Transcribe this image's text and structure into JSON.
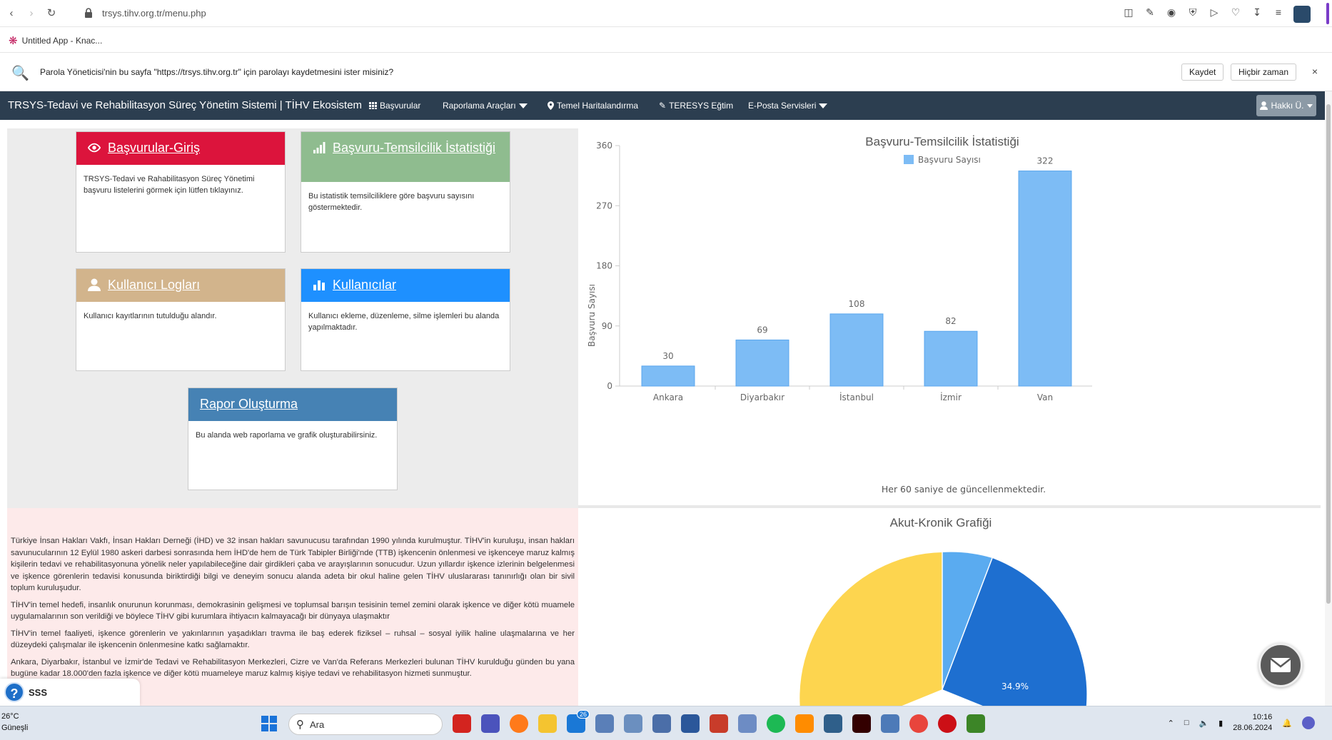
{
  "browser": {
    "url": "trsys.tihv.org.tr/menu.php",
    "bookmark": "Untitled App - Knac..."
  },
  "password_bar": {
    "message": "Parola Yöneticisi'nin bu sayfa \"https://trsys.tihv.org.tr\" için parolayı kaydetmesini ister misiniz?",
    "save_label": "Kaydet",
    "never_label": "Hiçbir zaman",
    "close_label": "×"
  },
  "navbar": {
    "brand": "TRSYS-Tedavi ve Rehabilitasyon Süreç Yönetim Sistemi | TİHV Ekosistem",
    "links": [
      "Başvurular",
      "Raporlama Araçları",
      "Temel Haritalandırma",
      "TERESYS Eğtim",
      "E-Posta Servisleri"
    ],
    "user": "Hakkı Ü."
  },
  "cards": [
    {
      "title": "Başvurular-Giriş",
      "body": "TRSYS-Tedavi ve Rahabilitasyon Süreç Yönetimi başvuru listelerini görmek için lütfen tıklayınız.",
      "color": "#dc143c"
    },
    {
      "title": "Başvuru-Temsilcilik İstatistiği",
      "body": "Bu istatistik temsilciliklere göre başvuru sayısını göstermektedir.",
      "color": "#8fbc8f"
    },
    {
      "title": "Kullanıcı Logları",
      "body": "Kullanıcı kayıtlarının tutulduğu alandır.",
      "color": "#d2b48c"
    },
    {
      "title": "Kullanıcılar",
      "body": "Kullanıcı ekleme, düzenleme, silme işlemleri bu alanda yapılmaktadır.",
      "color": "#1e90ff"
    },
    {
      "title": "Rapor Oluşturma",
      "body": "Bu alanda web raporlama ve grafik oluşturabilirsiniz.",
      "color": "#4682b4"
    }
  ],
  "about": {
    "paragraphs": [
      "Türkiye İnsan Hakları Vakfı, İnsan Hakları Derneği (İHD) ve 32 insan hakları savunucusu tarafından 1990 yılında kurulmuştur. TİHV'in kuruluşu, insan hakları savunucularının 12 Eylül 1980 askeri darbesi sonrasında hem İHD'de hem de Türk Tabipler Birliği'nde (TTB) işkencenin önlenmesi ve işkenceye maruz kalmış kişilerin tedavi ve rehabilitasyonuna yönelik neler yapılabileceğine dair girdikleri çaba ve arayışlarının sonucudur. Uzun yıllardır işkence izlerinin belgelenmesi ve işkence görenlerin tedavisi konusunda biriktirdiği bilgi ve deneyim sonucu alanda adeta bir okul haline gelen TİHV uluslararası tanınırlığı olan bir sivil toplum kuruluşudur.",
      "TİHV'in temel hedefi, insanlık onurunun korunması, demokrasinin gelişmesi ve toplumsal barışın tesisinin temel zemini olarak işkence ve diğer kötü muamele uygulamalarının son verildiği ve böylece TİHV gibi kurumlara ihtiyacın kalmayacağı bir dünyaya ulaşmaktır",
      "TİHV'in temel faaliyeti, işkence görenlerin ve yakınlarının yaşadıkları travma ile baş ederek fiziksel – ruhsal – sosyal iyilik haline ulaşmalarına ve her düzeydeki çalışmalar ile işkencenin önlenmesine katkı sağlamaktır.",
      "Ankara, Diyarbakır, İstanbul ve İzmir'de Tedavi ve Rehabilitasyon Merkezleri, Cizre ve Van'da Referans Merkezleri bulunan TİHV kurulduğu günden bu yana bugüne kadar 18.000'den fazla işkence ve diğer kötü muameleye maruz kalmış kişiye tedavi ve rehabilitasyon hizmeti sunmuştur."
    ]
  },
  "chart_data": [
    {
      "type": "bar",
      "title": "Başvuru-Temsilcilik İstatistiği",
      "legend": "Başvuru Sayısı",
      "categories": [
        "Ankara",
        "Diyarbakır",
        "İstanbul",
        "İzmir",
        "Van"
      ],
      "values": [
        30,
        69,
        108,
        82,
        322
      ],
      "ylabel": "Başvuru Sayısı",
      "yticks": [
        0,
        90,
        180,
        270,
        360
      ],
      "ylim": [
        0,
        360
      ],
      "footer": "Her 60 saniye de güncellenmektedir.",
      "color": "#7dbcf5"
    },
    {
      "type": "pie",
      "title": "Akut-Kronik Grafiği",
      "visible_label": "34.9%",
      "colors": [
        "#5aabf0",
        "#1e6fd0",
        "#fdd54f"
      ]
    }
  ],
  "widgets": {
    "help_label": "SSS",
    "help_symbol": "?"
  },
  "taskbar": {
    "weather_temp": "26°C",
    "weather_desc": "Güneşli",
    "search_placeholder": "Ara",
    "time": "10:16",
    "date": "28.06.2024",
    "mail_badge": "26"
  }
}
